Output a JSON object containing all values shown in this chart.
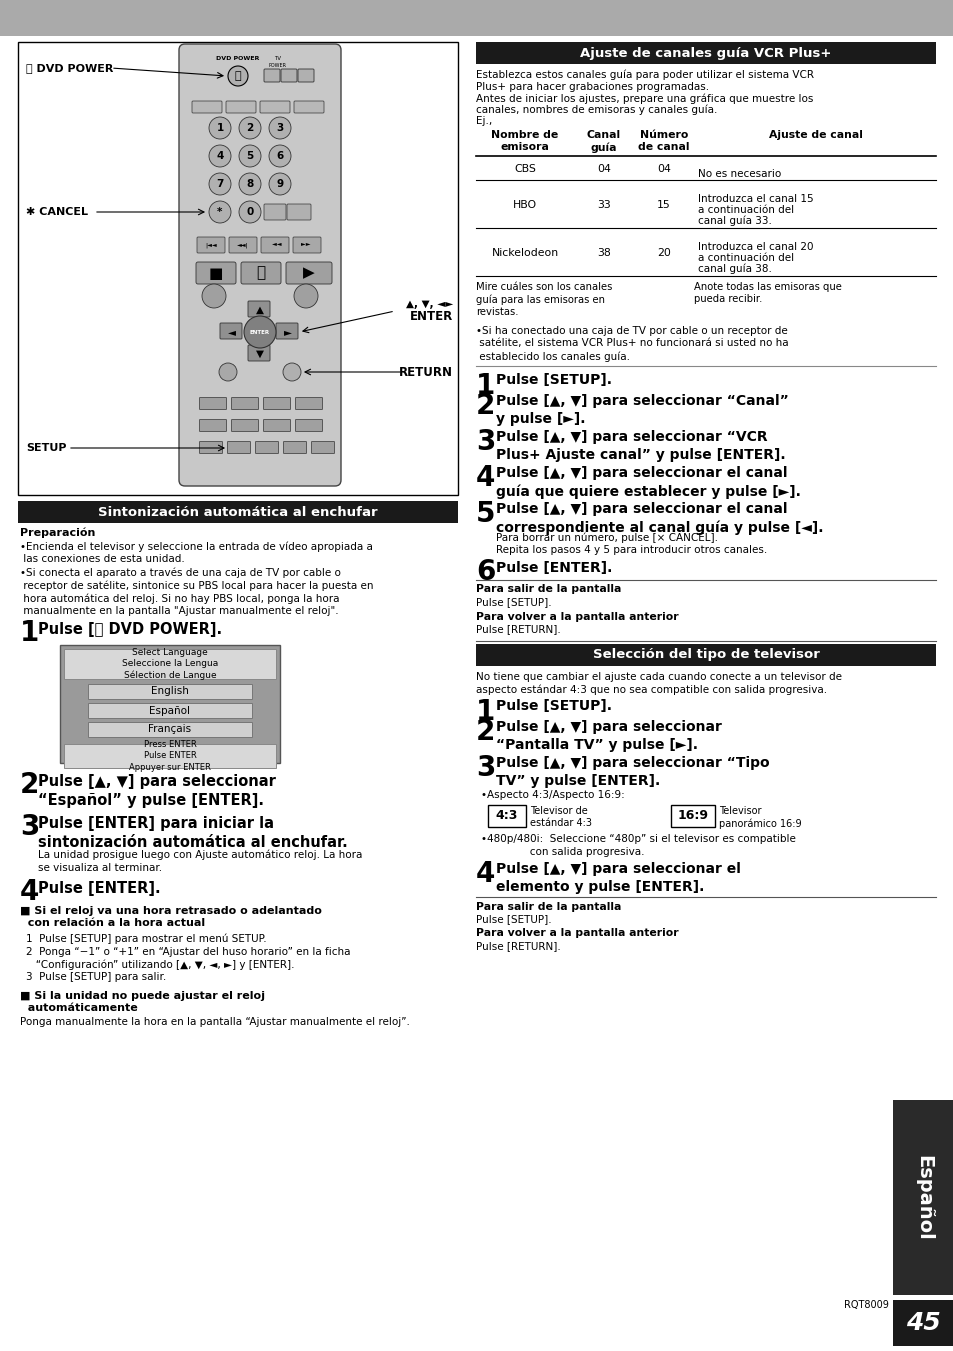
{
  "page_bg": "#ffffff",
  "header_bg": "#aaaaaa",
  "left_section_title": "Sintonización automática al enchufar",
  "preparacion_title": "Preparación",
  "preparacion_bullets": [
    "Encienda el televisor y seleccione la entrada de vídeo apropiada a las conexiones de esta unidad.",
    "Si conecta el aparato a través de una caja de TV por cable o receptor de satélite, sintonice su PBS local para hacer la puesta en hora automática del reloj. Si no hay PBS local, ponga la hora manualmente en la pantalla “Ajustar manualmente el reloj”."
  ],
  "left_steps": [
    {
      "num": "1",
      "bold": "Pulse [⏻ DVD POWER]."
    },
    {
      "num": "2",
      "bold": "Pulse [▲, ▼] para seleccionar\n“Español” y pulse [ENTER]."
    },
    {
      "num": "3",
      "bold": "Pulse [ENTER] para iniciar la\nsintonización automática al enchufar.",
      "note": "La unidad prosigue luego con Ajuste automático reloj. La hora\nse visualiza al terminar."
    },
    {
      "num": "4",
      "bold": "Pulse [ENTER]."
    }
  ],
  "left_note1_title": "■ Si el reloj va una hora retrasado o adelantado\n  con relación a la hora actual",
  "left_note1_steps": [
    "1  Pulse [SETUP] para mostrar el menú SETUP.",
    "2  Ponga “−1” o “+1” en “Ajustar del huso horario” en la ficha\n   “Configuración” utilizando [▲, ▼, ◄, ►] y [ENTER].",
    "3  Pulse [SETUP] para salir."
  ],
  "left_note2_title": "■ Si la unidad no puede ajustar el reloj\n  automáticamente",
  "left_note2_body": "Ponga manualmente la hora en la pantalla “Ajustar manualmente el reloj”.",
  "right_section1_title": "Ajuste de canales guía VCR Plus+",
  "right_section1_body": [
    "Establezca estos canales guía para poder utilizar el sistema VCR",
    "Plus+ para hacer grabaciones programadas.",
    "Antes de iniciar los ajustes, prepare una gráfica que muestre los",
    "canales, nombres de emisoras y canales guía.",
    "Ej.,"
  ],
  "bullet_note": "•Si ha conectado una caja de TV por cable o un receptor de\n satélite, el sistema VCR Plus+ no funcionará si usted no ha\n establecido los canales guía.",
  "right_steps_1": [
    {
      "num": "1",
      "bold": "Pulse [SETUP]."
    },
    {
      "num": "2",
      "bold": "Pulse [▲, ▼] para seleccionar “Canal”\ny pulse [►]."
    },
    {
      "num": "3",
      "bold": "Pulse [▲, ▼] para seleccionar “VCR\nPlus+ Ajuste canal” y pulse [ENTER]."
    },
    {
      "num": "4",
      "bold": "Pulse [▲, ▼] para seleccionar el canal\nguía que quiere establecer y pulse [►]."
    },
    {
      "num": "5",
      "bold": "Pulse [▲, ▼] para seleccionar el canal\ncorrespondiente al canal guía y pulse [◄].",
      "note": "Para borrar un número, pulse [× CANCEL].\nRepita los pasos 4 y 5 para introducir otros canales."
    },
    {
      "num": "6",
      "bold": "Pulse [ENTER]."
    }
  ],
  "right_footer1_title": "Para salir de la pantalla",
  "right_footer1": "Pulse [SETUP].",
  "right_footer2_title": "Para volver a la pantalla anterior",
  "right_footer2": "Pulse [RETURN].",
  "right_section2_title": "Selección del tipo de televisor",
  "right_section2_body": "No tiene que cambiar el ajuste cada cuando conecte a un televisor de\naspecto estándar 4:3 que no sea compatible con salida progresiva.",
  "right_steps_2": [
    {
      "num": "1",
      "bold": "Pulse [SETUP]."
    },
    {
      "num": "2",
      "bold": "Pulse [▲, ▼] para seleccionar\n“Pantalla TV” y pulse [►]."
    },
    {
      "num": "3",
      "bold": "Pulse [▲, ▼] para seleccionar “Tipo\nTV” y pulse [ENTER]."
    }
  ],
  "aspect_note": "•Aspecto 4:3/Aspecto 16:9:",
  "aspect_43_label": "4:3",
  "aspect_43_text": "Televisor de\nestándar 4:3",
  "aspect_169_label": "16:9",
  "aspect_169_text": "Televisor\npanorámico 16:9",
  "aspect_480": "•480p/480i:  Seleccione “480p” si el televisor es compatible\n               con salida progresiva.",
  "right_steps_2b": [
    {
      "num": "4",
      "bold": "Pulse [▲, ▼] para seleccionar el\nelemento y pulse [ENTER]."
    }
  ],
  "right_footer3_title": "Para salir de la pantalla",
  "right_footer3": "Pulse [SETUP].",
  "right_footer4_title": "Para volver a la pantalla anterior",
  "right_footer4": "Pulse [RETURN].",
  "espanol_label": "Español",
  "page_num": "45",
  "model_num": "RQT8009",
  "screen_title": "Select Language\nSeleccione la Lengua\nSélection de Langue",
  "screen_options": [
    "English",
    "Español",
    "Français"
  ],
  "screen_footer": "Press ENTER\nPulse ENTER\nAppuyer sur ENTER"
}
